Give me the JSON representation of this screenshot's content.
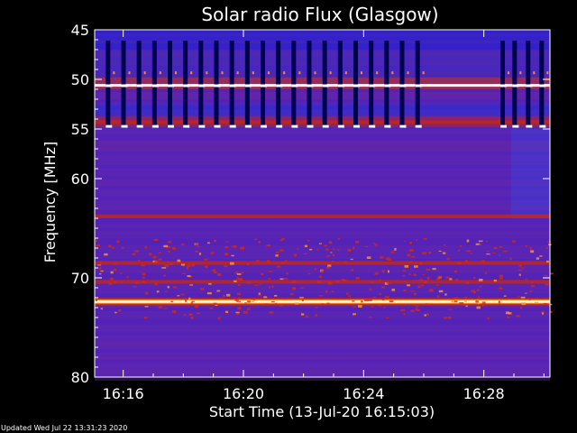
{
  "chart_data": {
    "type": "heatmap",
    "title": "Solar radio Flux (Glasgow)",
    "xlabel": "Start Time (13-Jul-20 16:15:03)",
    "ylabel": "Frequency [MHz]",
    "x_tick_labels": [
      "16:16",
      "16:20",
      "16:24",
      "16:28"
    ],
    "x_tick_minutes": [
      16,
      20,
      24,
      28
    ],
    "xlim_minutes": [
      15.05,
      30.2
    ],
    "y_tick_labels": [
      "45",
      "50",
      "55",
      "60",
      "70",
      "80"
    ],
    "y_tick_values": [
      45,
      50,
      55,
      60,
      70,
      80
    ],
    "ylim_mhz": [
      45,
      80
    ],
    "colormap": [
      "#000060",
      "#1a1acc",
      "#5a22b4",
      "#9a1a4a",
      "#d42a10",
      "#ff6a00",
      "#ffe040",
      "#ffffe0"
    ],
    "bright_bands": [
      {
        "mhz": 50.6,
        "level": "high"
      },
      {
        "mhz": 54.3,
        "level": "medium"
      },
      {
        "mhz": 63.8,
        "level": "medium"
      },
      {
        "mhz": 68.5,
        "level": "medium"
      },
      {
        "mhz": 70.4,
        "level": "medium"
      },
      {
        "mhz": 72.4,
        "level": "saturated"
      }
    ],
    "grid": false,
    "legend": "none"
  },
  "footer": {
    "updated": "Updated Wed Jul 22 13:31:23 2020"
  }
}
